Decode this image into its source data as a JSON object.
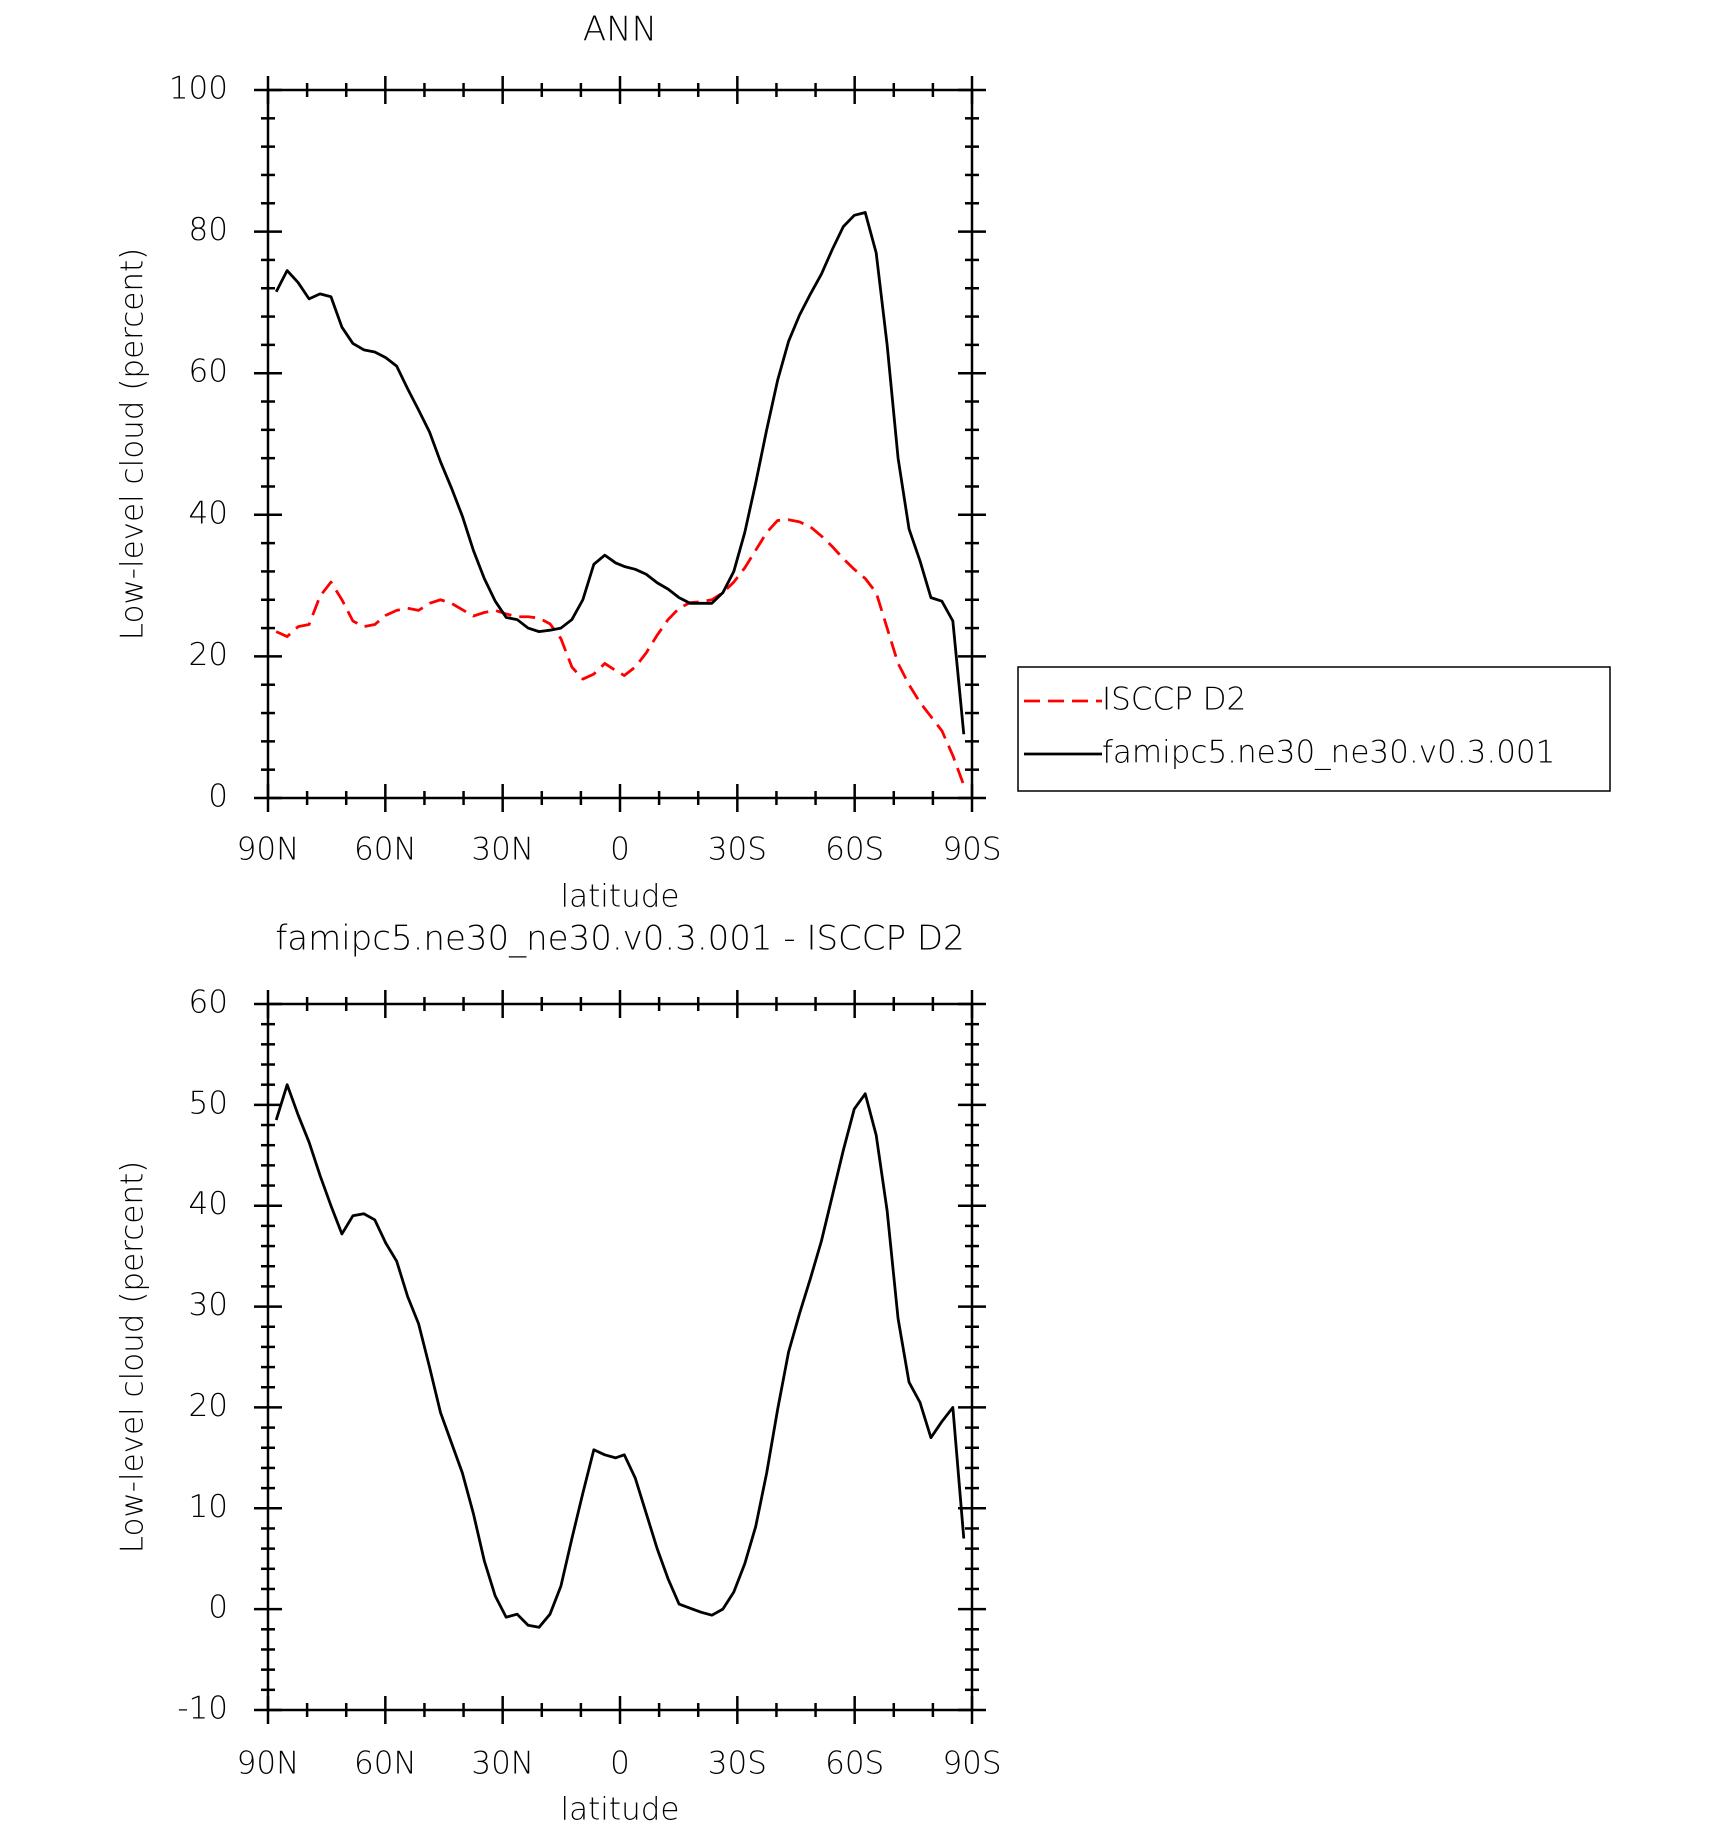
{
  "chart_data": [
    {
      "type": "line",
      "title": "ANN",
      "xlabel": "latitude",
      "ylabel": "Low-level cloud (percent)",
      "x": [
        87.9,
        85.1,
        82.3,
        79.5,
        76.7,
        73.9,
        71.1,
        68.3,
        65.5,
        62.7,
        59.9,
        57.1,
        54.3,
        51.5,
        48.7,
        45.9,
        43.1,
        40.3,
        37.5,
        34.7,
        31.9,
        29.1,
        26.3,
        23.5,
        20.7,
        17.9,
        15.1,
        12.3,
        9.5,
        6.7,
        3.9,
        1.1,
        -1.1,
        -3.9,
        -6.7,
        -9.5,
        -12.3,
        -15.1,
        -17.9,
        -20.7,
        -23.5,
        -26.3,
        -29.1,
        -31.9,
        -34.7,
        -37.5,
        -40.3,
        -43.1,
        -45.9,
        -48.7,
        -51.5,
        -54.3,
        -57.1,
        -59.9,
        -62.7,
        -65.5,
        -68.3,
        -71.1,
        -73.9,
        -76.7,
        -79.5,
        -82.3,
        -85.1,
        -87.9
      ],
      "xlim": [
        90,
        -90
      ],
      "xticks": [
        {
          "value": 90,
          "label": "90N"
        },
        {
          "value": 60,
          "label": "60N"
        },
        {
          "value": 30,
          "label": "30N"
        },
        0,
        {
          "value": -30,
          "label": "30S"
        },
        {
          "value": -60,
          "label": "60S"
        },
        {
          "value": -90,
          "label": "90S"
        }
      ],
      "ylim": [
        0,
        100
      ],
      "yticks": [
        0,
        20,
        40,
        60,
        80,
        100
      ],
      "legend": "right",
      "series": [
        {
          "name": "ISCCP D2",
          "color": "#ff0000",
          "dash": "dashed",
          "values": [
            23.5,
            22.8,
            24.2,
            24.5,
            28.5,
            30.5,
            28.0,
            25.0,
            24.2,
            24.5,
            25.8,
            26.5,
            26.8,
            26.5,
            27.5,
            28.0,
            27.5,
            26.6,
            25.7,
            26.2,
            26.5,
            26.0,
            25.6,
            25.6,
            25.4,
            24.6,
            22.5,
            18.5,
            16.8,
            17.5,
            19.0,
            18.0,
            17.3,
            18.5,
            20.5,
            23.0,
            25.2,
            26.8,
            27.6,
            27.7,
            28.0,
            29.0,
            30.5,
            32.5,
            35.0,
            37.5,
            39.2,
            39.3,
            39.0,
            38.3,
            37.0,
            35.5,
            33.8,
            32.3,
            31.0,
            29.0,
            24.0,
            19.0,
            16.0,
            13.5,
            11.5,
            9.5,
            6.0,
            1.8
          ]
        },
        {
          "name": "famipc5.ne30_ne30.v0.3.001",
          "color": "#000000",
          "dash": "solid",
          "values": [
            71.5,
            74.5,
            72.8,
            70.5,
            71.2,
            70.8,
            66.5,
            64.2,
            63.3,
            63.0,
            62.2,
            61.0,
            57.8,
            54.8,
            51.7,
            47.5,
            43.8,
            39.8,
            35.0,
            31.0,
            27.8,
            25.5,
            25.2,
            24.0,
            23.5,
            23.7,
            24.0,
            25.2,
            28.0,
            33.0,
            34.3,
            33.2,
            32.7,
            32.3,
            31.6,
            30.4,
            29.5,
            28.3,
            27.5,
            27.5,
            27.5,
            29.0,
            32.0,
            37.5,
            44.5,
            52.0,
            59.0,
            64.5,
            68.2,
            71.2,
            74.0,
            77.5,
            80.7,
            82.3,
            82.7,
            77.0,
            64.0,
            48.0,
            38.0,
            33.5,
            28.3,
            27.8,
            25.0,
            9.0
          ]
        }
      ]
    },
    {
      "type": "line",
      "title": "famipc5.ne30_ne30.v0.3.001 - ISCCP D2",
      "xlabel": "latitude",
      "ylabel": "Low-level cloud (percent)",
      "x": [
        87.9,
        85.1,
        82.3,
        79.5,
        76.7,
        73.9,
        71.1,
        68.3,
        65.5,
        62.7,
        59.9,
        57.1,
        54.3,
        51.5,
        48.7,
        45.9,
        43.1,
        40.3,
        37.5,
        34.7,
        31.9,
        29.1,
        26.3,
        23.5,
        20.7,
        17.9,
        15.1,
        12.3,
        9.5,
        6.7,
        3.9,
        1.1,
        -1.1,
        -3.9,
        -6.7,
        -9.5,
        -12.3,
        -15.1,
        -17.9,
        -20.7,
        -23.5,
        -26.3,
        -29.1,
        -31.9,
        -34.7,
        -37.5,
        -40.3,
        -43.1,
        -45.9,
        -48.7,
        -51.5,
        -54.3,
        -57.1,
        -59.9,
        -62.7,
        -65.5,
        -68.3,
        -71.1,
        -73.9,
        -76.7,
        -79.5,
        -82.3,
        -85.1,
        -87.9
      ],
      "xlim": [
        90,
        -90
      ],
      "xticks": [
        {
          "value": 90,
          "label": "90N"
        },
        {
          "value": 60,
          "label": "60N"
        },
        {
          "value": 30,
          "label": "30N"
        },
        0,
        {
          "value": -30,
          "label": "30S"
        },
        {
          "value": -60,
          "label": "60S"
        },
        {
          "value": -90,
          "label": "90S"
        }
      ],
      "ylim": [
        -10,
        60
      ],
      "yticks": [
        -10,
        0,
        10,
        20,
        30,
        40,
        50,
        60
      ],
      "series": [
        {
          "color": "#000000",
          "dash": "solid",
          "values": [
            48.5,
            52,
            49,
            46.3,
            43,
            40,
            37.2,
            39,
            39.2,
            38.6,
            36.3,
            34.5,
            31,
            28.3,
            24,
            19.5,
            16.5,
            13.5,
            9.5,
            4.8,
            1.3,
            -0.8,
            -0.5,
            -1.6,
            -1.8,
            -0.5,
            2.3,
            7,
            11.5,
            15.8,
            15.3,
            15.0,
            15.3,
            13,
            9.5,
            6,
            3,
            0.5,
            0.1,
            -0.3,
            -0.6,
            0,
            1.7,
            4.5,
            8.2,
            13.5,
            19.8,
            25.5,
            29.3,
            32.8,
            36.5,
            41,
            45.5,
            49.6,
            51.1,
            47,
            39.5,
            28.8,
            22.5,
            20.5,
            17,
            18.6,
            20,
            7
          ]
        }
      ]
    }
  ]
}
